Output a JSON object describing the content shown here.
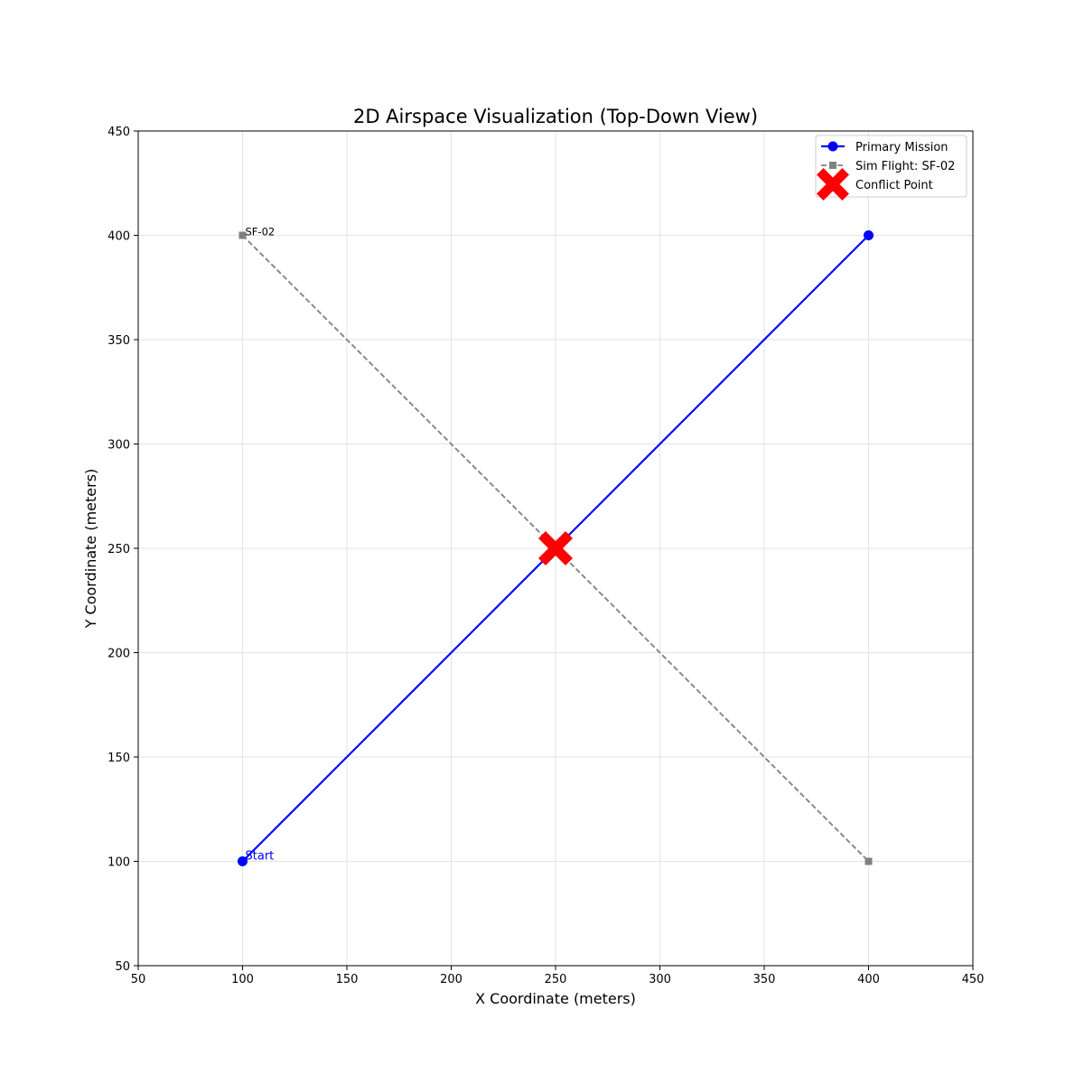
{
  "chart_data": {
    "type": "line",
    "title": "2D Airspace Visualization (Top-Down View)",
    "xlabel": "X Coordinate (meters)",
    "ylabel": "Y Coordinate (meters)",
    "xlim": [
      50,
      450
    ],
    "ylim": [
      50,
      450
    ],
    "xticks": [
      "50",
      "100",
      "150",
      "200",
      "250",
      "300",
      "350",
      "400",
      "450"
    ],
    "yticks": [
      "50",
      "100",
      "150",
      "200",
      "250",
      "300",
      "350",
      "400",
      "450"
    ],
    "grid": true,
    "legend_position": "top-right",
    "series": [
      {
        "name": "Primary Mission",
        "style": "solid",
        "marker": "circle",
        "color": "#0000ff",
        "points": [
          [
            100,
            100
          ],
          [
            400,
            400
          ]
        ]
      },
      {
        "name": "Sim Flight: SF-02",
        "style": "dashed",
        "marker": "square",
        "color": "#808080",
        "points": [
          [
            100,
            400
          ],
          [
            400,
            100
          ]
        ]
      }
    ],
    "conflict": {
      "name": "Conflict Point",
      "marker": "X",
      "color": "#ff0000",
      "point": [
        250,
        250
      ]
    },
    "annotations": [
      {
        "text": "Start",
        "x": 100,
        "y": 100,
        "color": "#0000ff"
      },
      {
        "text": "SF-02",
        "x": 100,
        "y": 400,
        "color": "#000000"
      }
    ]
  }
}
